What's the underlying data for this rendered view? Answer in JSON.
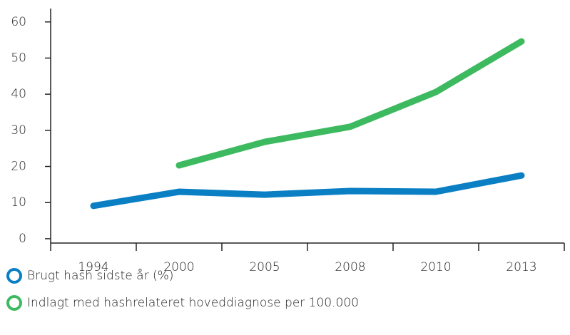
{
  "chart_data": {
    "type": "line",
    "categories": [
      "1994",
      "2000",
      "2005",
      "2008",
      "2010",
      "2013"
    ],
    "series": [
      {
        "name": "Brugt hash sidste år (%)",
        "color": "#0a7fc4",
        "values": [
          9.1,
          13,
          12.2,
          13.2,
          13,
          17.5
        ]
      },
      {
        "name": "Indlagt med hashrelateret hoveddiagnose per 100.000",
        "color": "#3dba5f",
        "values": [
          null,
          20.3,
          26.8,
          31,
          40.6,
          54.6
        ]
      }
    ],
    "ylim": [
      -1.2,
      63.7
    ],
    "yticks": [
      0,
      10,
      20,
      30,
      40,
      50,
      60
    ]
  }
}
